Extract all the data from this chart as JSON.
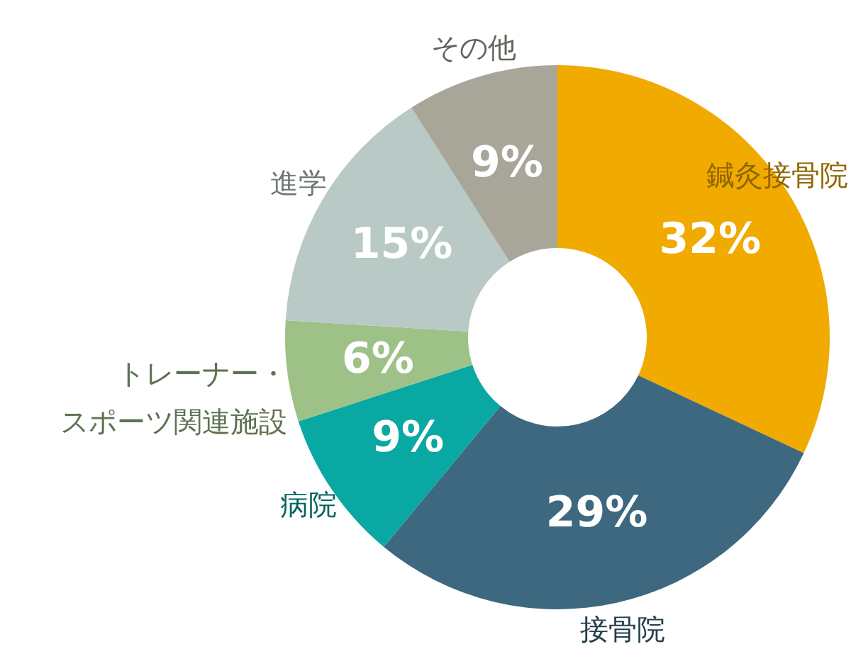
{
  "chart_data": {
    "type": "donut",
    "categories": [
      "鍼灸接骨院",
      "接骨院",
      "病院",
      "トレーナー・スポーツ関連施設",
      "進学",
      "その他"
    ],
    "values": [
      32,
      29,
      9,
      6,
      15,
      9
    ],
    "colors": [
      "#f0aa00",
      "#3d687f",
      "#0aa8a3",
      "#9ec188",
      "#b8c9c6",
      "#a8a699"
    ],
    "value_labels": [
      "32%",
      "29%",
      "9%",
      "6%",
      "15%",
      "9%"
    ]
  }
}
